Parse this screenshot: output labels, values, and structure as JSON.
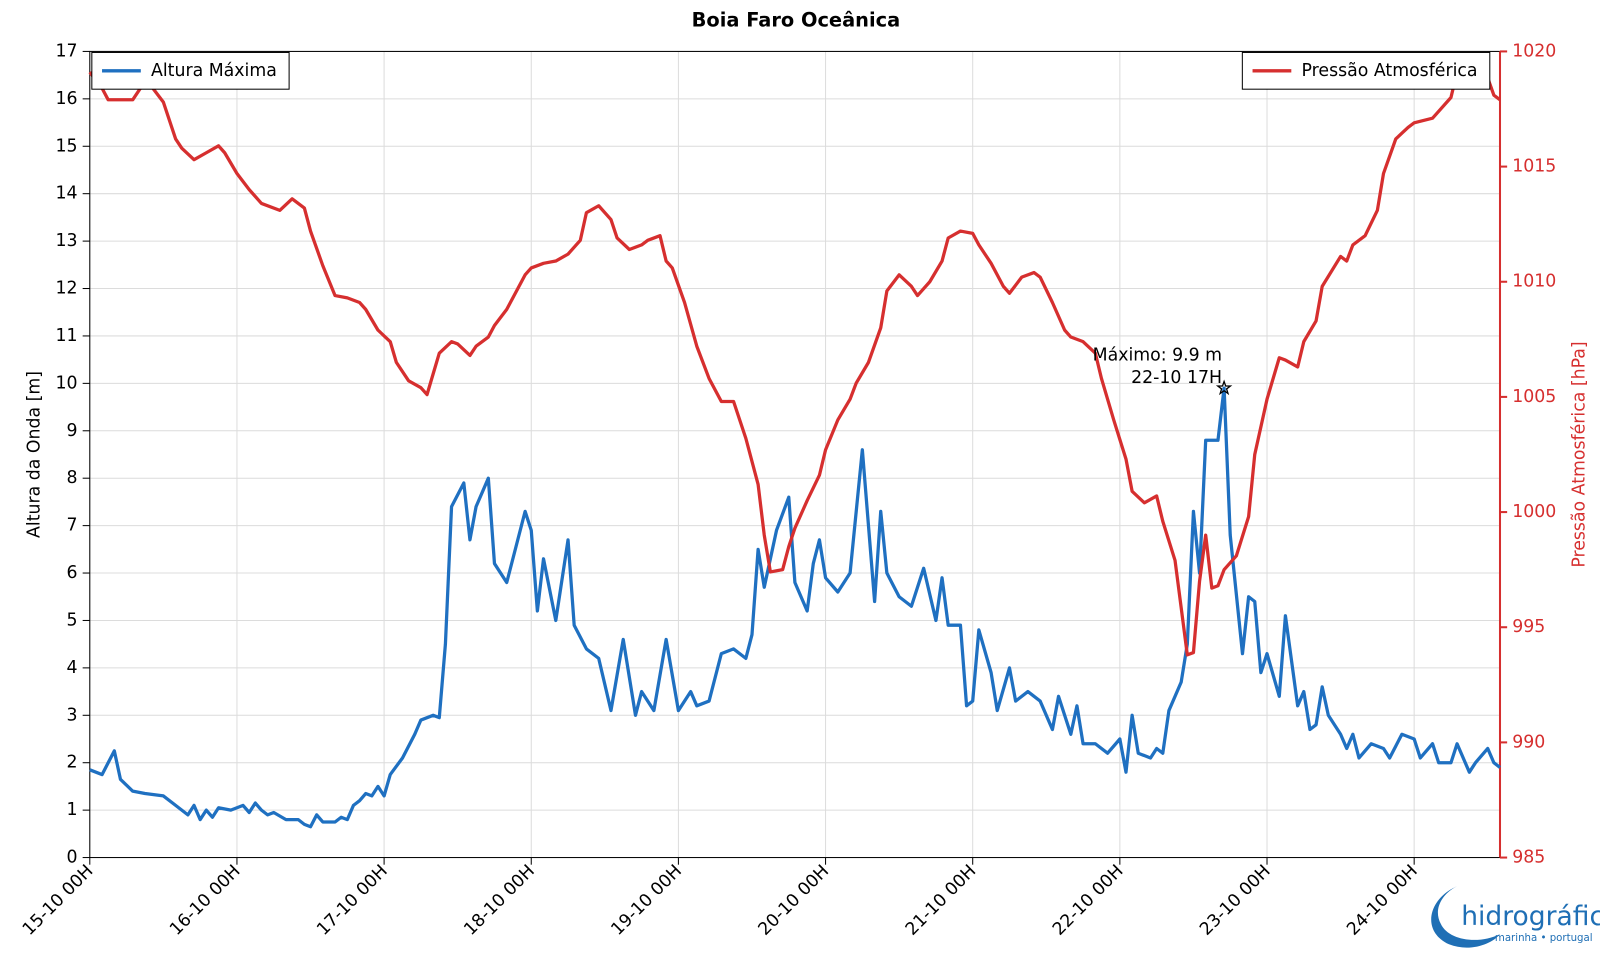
{
  "chart_data": {
    "type": "line",
    "title": "Boia Faro Oceânica",
    "ylabel": "Altura da Onda [m]",
    "y2label": "Pressão Atmosférica [hPa]",
    "y2color": "#d62f2f",
    "grid": true,
    "xlim": [
      0,
      230
    ],
    "xticks": [
      {
        "value": 0,
        "label": "15-10 00H"
      },
      {
        "value": 24,
        "label": "16-10 00H"
      },
      {
        "value": 48,
        "label": "17-10 00H"
      },
      {
        "value": 72,
        "label": "18-10 00H"
      },
      {
        "value": 96,
        "label": "19-10 00H"
      },
      {
        "value": 120,
        "label": "20-10 00H"
      },
      {
        "value": 144,
        "label": "21-10 00H"
      },
      {
        "value": 168,
        "label": "22-10 00H"
      },
      {
        "value": 192,
        "label": "23-10 00H"
      },
      {
        "value": 216,
        "label": "24-10 00H"
      }
    ],
    "ylim": [
      0,
      17
    ],
    "yticks": [
      0,
      1,
      2,
      3,
      4,
      5,
      6,
      7,
      8,
      9,
      10,
      11,
      12,
      13,
      14,
      15,
      16,
      17
    ],
    "y2lim": [
      985,
      1020
    ],
    "y2ticks": [
      985,
      990,
      995,
      1000,
      1005,
      1010,
      1015,
      1020
    ],
    "series": [
      {
        "name": "Altura Máxima",
        "color": "#1f70c1",
        "axis": "y",
        "legend": "upper left",
        "x": [
          0,
          2,
          4,
          5,
          7,
          9,
          12,
          14,
          16,
          17,
          18,
          19,
          20,
          21,
          23,
          25,
          26,
          27,
          28,
          29,
          30,
          32,
          34,
          35,
          36,
          37,
          38,
          39,
          40,
          41,
          42,
          43,
          44,
          45,
          46,
          47,
          48,
          49,
          51,
          53,
          54,
          56,
          57,
          58,
          59,
          61,
          62,
          63,
          65,
          66,
          68,
          71,
          72,
          73,
          74,
          76,
          78,
          79,
          81,
          83,
          85,
          87,
          89,
          90,
          92,
          94,
          96,
          98,
          99,
          101,
          103,
          105,
          107,
          108,
          109,
          110,
          112,
          114,
          115,
          117,
          118,
          119,
          120,
          122,
          124,
          126,
          128,
          129,
          130,
          132,
          134,
          136,
          138,
          139,
          140,
          142,
          143,
          144,
          145,
          147,
          148,
          150,
          151,
          153,
          155,
          157,
          158,
          160,
          161,
          162,
          164,
          166,
          168,
          169,
          170,
          171,
          173,
          174,
          175,
          176,
          178,
          179,
          180,
          181,
          182,
          184,
          185,
          186,
          188,
          189,
          190,
          191,
          192,
          194,
          195,
          197,
          198,
          199,
          200,
          201,
          202,
          204,
          205,
          206,
          207,
          209,
          211,
          212,
          214,
          216,
          217,
          219,
          220,
          222,
          223,
          225,
          226,
          228,
          229,
          230
        ],
        "values": [
          1.85,
          1.75,
          2.25,
          1.65,
          1.4,
          1.35,
          1.3,
          1.1,
          0.9,
          1.1,
          0.8,
          1.0,
          0.85,
          1.05,
          1.0,
          1.1,
          0.95,
          1.15,
          1.0,
          0.9,
          0.95,
          0.8,
          0.8,
          0.7,
          0.65,
          0.9,
          0.75,
          0.75,
          0.75,
          0.85,
          0.8,
          1.1,
          1.2,
          1.35,
          1.3,
          1.5,
          1.3,
          1.75,
          2.1,
          2.6,
          2.9,
          3.0,
          2.95,
          4.5,
          7.4,
          7.9,
          6.7,
          7.4,
          8.0,
          6.2,
          5.8,
          7.3,
          6.9,
          5.2,
          6.3,
          5.0,
          6.7,
          4.9,
          4.4,
          4.2,
          3.1,
          4.6,
          3.0,
          3.5,
          3.1,
          4.6,
          3.1,
          3.5,
          3.2,
          3.3,
          4.3,
          4.4,
          4.2,
          4.7,
          6.5,
          5.7,
          6.9,
          7.6,
          5.8,
          5.2,
          6.2,
          6.7,
          5.9,
          5.6,
          6.0,
          8.6,
          5.4,
          7.3,
          6.0,
          5.5,
          5.3,
          6.1,
          5.0,
          5.9,
          4.9,
          4.9,
          3.2,
          3.3,
          4.8,
          3.9,
          3.1,
          4.0,
          3.3,
          3.5,
          3.3,
          2.7,
          3.4,
          2.6,
          3.2,
          2.4,
          2.4,
          2.2,
          2.5,
          1.8,
          3.0,
          2.2,
          2.1,
          2.3,
          2.2,
          3.1,
          3.7,
          4.5,
          7.3,
          6.0,
          8.8,
          8.8,
          9.9,
          6.8,
          4.3,
          5.5,
          5.4,
          3.9,
          4.3,
          3.4,
          5.1,
          3.2,
          3.5,
          2.7,
          2.8,
          3.6,
          3.0,
          2.6,
          2.3,
          2.6,
          2.1,
          2.4,
          2.3,
          2.1,
          2.6,
          2.5,
          2.1,
          2.4,
          2.0,
          2.0,
          2.4,
          1.8,
          2.0,
          2.3,
          2.0,
          1.9
        ]
      },
      {
        "name": "Pressão Atmosférica",
        "color": "#d62f2f",
        "axis": "y2",
        "legend": "upper right",
        "x": [
          0,
          2,
          3,
          7,
          9,
          10,
          12,
          14,
          15,
          17,
          19,
          21,
          22,
          24,
          26,
          28,
          31,
          33,
          35,
          36,
          38,
          40,
          42,
          44,
          45,
          47,
          49,
          50,
          52,
          54,
          55,
          56,
          57,
          59,
          60,
          62,
          63,
          65,
          66,
          68,
          70,
          71,
          72,
          74,
          76,
          78,
          80,
          81,
          83,
          85,
          86,
          88,
          90,
          91,
          93,
          94,
          95,
          97,
          99,
          101,
          103,
          105,
          107,
          109,
          110,
          111,
          113,
          114,
          115,
          117,
          119,
          120,
          122,
          124,
          125,
          127,
          129,
          130,
          132,
          134,
          135,
          137,
          139,
          140,
          142,
          144,
          145,
          147,
          149,
          150,
          152,
          154,
          155,
          157,
          159,
          160,
          162,
          164,
          165,
          167,
          169,
          170,
          172,
          174,
          175,
          177,
          179,
          180,
          181,
          182,
          183,
          184,
          185,
          187,
          189,
          190,
          192,
          194,
          195,
          197,
          198,
          200,
          201,
          204,
          205,
          206,
          208,
          210,
          211,
          213,
          215,
          216,
          219,
          220,
          222,
          223,
          224,
          227,
          229,
          230
        ],
        "values": [
          1019.1,
          1018.4,
          1017.9,
          1017.9,
          1018.7,
          1018.5,
          1017.8,
          1016.2,
          1015.8,
          1015.3,
          1015.6,
          1015.9,
          1015.6,
          1014.7,
          1014.0,
          1013.4,
          1013.1,
          1013.6,
          1013.2,
          1012.2,
          1010.7,
          1009.4,
          1009.3,
          1009.1,
          1008.8,
          1007.9,
          1007.4,
          1006.5,
          1005.7,
          1005.4,
          1005.1,
          1006.0,
          1006.9,
          1007.4,
          1007.3,
          1006.8,
          1007.2,
          1007.6,
          1008.1,
          1008.8,
          1009.8,
          1010.3,
          1010.6,
          1010.8,
          1010.9,
          1011.2,
          1011.8,
          1013.0,
          1013.3,
          1012.7,
          1011.9,
          1011.4,
          1011.6,
          1011.8,
          1012.0,
          1010.9,
          1010.6,
          1009.1,
          1007.2,
          1005.8,
          1004.8,
          1004.8,
          1003.2,
          1001.2,
          999.0,
          997.4,
          997.5,
          998.5,
          999.3,
          1000.5,
          1001.6,
          1002.7,
          1004.0,
          1004.9,
          1005.6,
          1006.5,
          1008.0,
          1009.6,
          1010.3,
          1009.8,
          1009.4,
          1010.0,
          1010.9,
          1011.9,
          1012.2,
          1012.1,
          1011.6,
          1010.8,
          1009.8,
          1009.5,
          1010.2,
          1010.4,
          1010.2,
          1009.1,
          1007.9,
          1007.6,
          1007.4,
          1006.9,
          1005.8,
          1004.0,
          1002.3,
          1000.9,
          1000.4,
          1000.7,
          999.6,
          997.9,
          993.8,
          993.9,
          997.0,
          999.0,
          996.7,
          996.8,
          997.5,
          998.1,
          999.8,
          1002.5,
          1004.9,
          1006.7,
          1006.6,
          1006.3,
          1007.4,
          1008.3,
          1009.8,
          1011.1,
          1010.9,
          1011.6,
          1012.0,
          1013.1,
          1014.7,
          1016.2,
          1016.7,
          1016.9,
          1017.1,
          1017.4,
          1018.0,
          1019.1,
          1019.8,
          1019.6,
          1018.1,
          1017.9
        ]
      }
    ],
    "annotation": {
      "text": [
        "Máximo: 9.9 m",
        "22-10 17H"
      ],
      "x": 185,
      "y": 9.9
    }
  },
  "logo": {
    "name": "hidrográfico",
    "tagline": "marinha • portugal"
  }
}
